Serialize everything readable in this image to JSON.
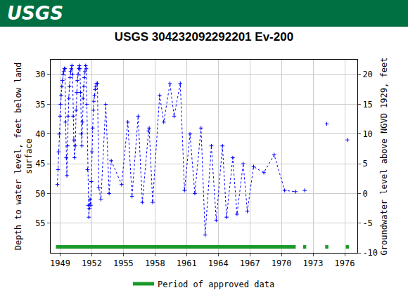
{
  "banner": {
    "text": "USGS",
    "color": "#006f41"
  },
  "chart_data": {
    "type": "line",
    "title": "USGS 304232092292201 Ev-200",
    "xlabel": "",
    "ylabel": "Depth to water level, feet below land surface",
    "y2label": "Groundwater level above NGVD 1929, feet",
    "xlim": [
      1948.1,
      1977.2
    ],
    "xticks": [
      1949,
      1952,
      1955,
      1958,
      1961,
      1964,
      1967,
      1970,
      1973,
      1976
    ],
    "ylim": [
      60,
      27.5
    ],
    "yticks": [
      30,
      35,
      40,
      45,
      50,
      55
    ],
    "y2lim": [
      -10,
      22.5
    ],
    "y2ticks": [
      -10,
      -5,
      0,
      5,
      10,
      15,
      20
    ],
    "grid": true,
    "legend": "bottom",
    "series": [
      {
        "color": "#0000ff",
        "line_style": "dotted",
        "marker": "plus",
        "x": [
          1948.74,
          1948.8,
          1948.86,
          1948.92,
          1948.98,
          1949.04,
          1949.1,
          1949.16,
          1949.22,
          1949.28,
          1949.34,
          1949.4,
          1949.46,
          1949.52,
          1949.58,
          1949.64,
          1949.7,
          1949.76,
          1949.82,
          1949.88,
          1949.94,
          1950.0,
          1950.06,
          1950.12,
          1950.18,
          1950.24,
          1950.3,
          1950.36,
          1950.44,
          1950.52,
          1950.58,
          1950.64,
          1950.7,
          1950.76,
          1950.82,
          1950.88,
          1950.94,
          1951.0,
          1951.06,
          1951.12,
          1951.18,
          1951.24,
          1951.3,
          1951.36,
          1951.42,
          1951.48,
          1951.54,
          1951.6,
          1951.66,
          1951.72,
          1951.78,
          1951.84,
          1951.9,
          1951.96,
          1952.02,
          1952.08,
          1952.14,
          1952.2,
          1952.26,
          1952.32,
          1952.38,
          1952.44,
          1952.54,
          1952.67,
          1952.87,
          1953.33,
          1953.65,
          1953.85,
          1954.83,
          1955.42,
          1955.82,
          1956.4,
          1956.8,
          1957.39,
          1957.45,
          1957.78,
          1958.44,
          1958.83,
          1959.42,
          1959.81,
          1960.4,
          1960.8,
          1961.32,
          1961.78,
          1962.37,
          1962.76,
          1963.35,
          1963.81,
          1964.4,
          1964.79,
          1965.38,
          1965.78,
          1966.37,
          1966.76,
          1967.35,
          1968.33,
          1969.31,
          1970.3,
          1971.35,
          1971.8,
          1972.2,
          1973.2,
          1974.3,
          1975.3,
          1976.26
        ],
        "values": [
          48.5,
          46,
          43,
          40,
          37,
          35,
          33.5,
          32,
          31,
          30,
          29.5,
          29,
          29,
          38,
          44,
          47,
          42,
          37,
          34,
          32,
          30.5,
          29.5,
          29,
          28.5,
          30,
          37,
          41,
          44,
          42,
          36,
          33,
          31,
          30,
          29,
          28.5,
          29,
          33,
          40,
          42,
          38,
          34,
          32,
          30.5,
          29.5,
          28.5,
          29,
          35,
          46,
          52,
          54,
          52.5,
          51,
          52,
          48,
          43,
          39,
          36,
          34.5,
          33.5,
          32.5,
          32,
          31.5,
          31.5,
          49,
          51,
          35,
          50,
          44.5,
          48.5,
          38,
          50.5,
          37,
          51.5,
          39.5,
          39,
          51.5,
          33.5,
          38,
          31.5,
          37,
          31.5,
          49.5,
          40,
          50,
          39,
          57,
          42,
          54.5,
          42,
          54,
          44,
          53.5,
          45,
          53,
          45.5,
          46.5,
          43.5,
          49.5,
          49.7,
          null,
          49.5,
          null,
          38.3,
          null,
          41
        ]
      },
      {
        "name": "Period of approved data",
        "color": "#1a9a2a",
        "line_style": "solid",
        "marker": "none",
        "x": [
          1948.6,
          1971.35,
          null,
          1972.05,
          1972.35,
          null,
          1974.15,
          1974.45,
          null,
          1976.1,
          1976.4
        ],
        "values": [
          59,
          59,
          null,
          59,
          59,
          null,
          59,
          59,
          null,
          59,
          59
        ]
      }
    ]
  }
}
